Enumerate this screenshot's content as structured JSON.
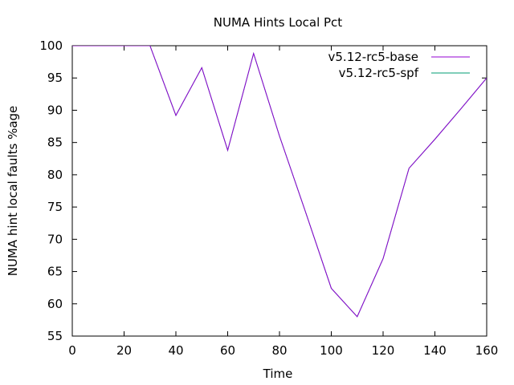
{
  "chart_data": {
    "type": "line",
    "title": "NUMA Hints Local Pct",
    "xlabel": "Time",
    "ylabel": "NUMA hint local faults %age",
    "xlim": [
      0,
      160
    ],
    "ylim": [
      55,
      100
    ],
    "xticks": [
      0,
      20,
      40,
      60,
      80,
      100,
      120,
      140,
      160
    ],
    "yticks": [
      55,
      60,
      65,
      70,
      75,
      80,
      85,
      90,
      95,
      100
    ],
    "grid": false,
    "legend_position": "top-right",
    "series": [
      {
        "name": "v5.12-rc5-base",
        "color": "#9400d3",
        "x": [
          0,
          10,
          20,
          30,
          40,
          50,
          60,
          70,
          80,
          90,
          100,
          110,
          120,
          130,
          140,
          150,
          160
        ],
        "y": [
          100,
          100,
          100,
          100,
          89.2,
          96.6,
          83.8,
          98.8,
          86.0,
          74.3,
          62.4,
          58.0,
          67.0,
          81.0,
          85.5,
          90.2,
          95.0
        ]
      },
      {
        "name": "v5.12-rc5-spf",
        "color": "#009e73",
        "x": [
          0,
          10,
          20,
          30,
          40,
          50,
          60,
          70,
          80,
          90,
          100,
          110,
          120,
          130,
          140,
          150,
          160
        ],
        "y": [
          100,
          100,
          100,
          100,
          89.2,
          96.6,
          83.8,
          98.8,
          86.0,
          74.3,
          62.4,
          58.0,
          67.0,
          81.0,
          85.5,
          90.2,
          95.0
        ]
      }
    ]
  }
}
